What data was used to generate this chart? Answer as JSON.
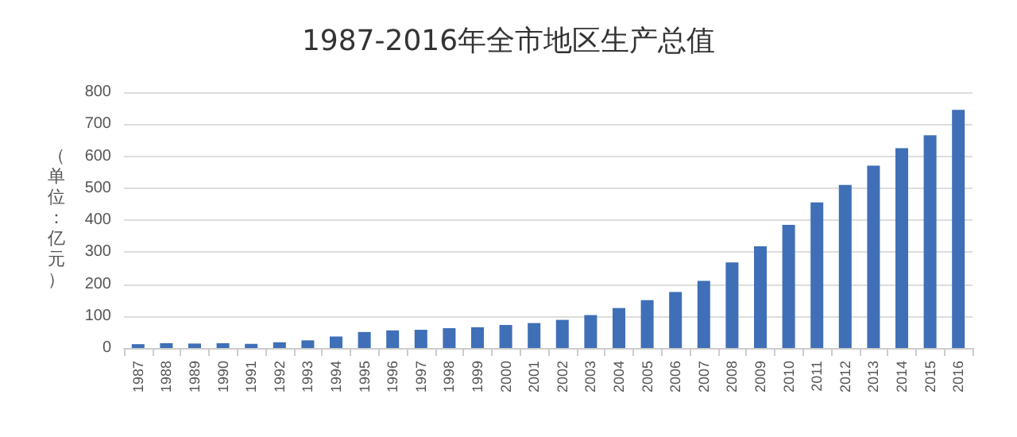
{
  "chart_data": {
    "type": "bar",
    "title": "1987-2016年全市地区生产总值",
    "ylabel": "（单位：亿元）",
    "categories": [
      "1987",
      "1988",
      "1989",
      "1990",
      "1991",
      "1992",
      "1993",
      "1994",
      "1995",
      "1996",
      "1997",
      "1998",
      "1999",
      "2000",
      "2001",
      "2002",
      "2003",
      "2004",
      "2005",
      "2006",
      "2007",
      "2008",
      "2009",
      "2010",
      "2011",
      "2012",
      "2013",
      "2014",
      "2015",
      "2016"
    ],
    "values": [
      12,
      15,
      14,
      15,
      13,
      18,
      24,
      36,
      50,
      55,
      57,
      62,
      65,
      72,
      78,
      88,
      103,
      125,
      150,
      175,
      210,
      268,
      318,
      385,
      455,
      510,
      570,
      625,
      665,
      745
    ],
    "color": "#3f6fb6",
    "ylim": [
      0,
      800
    ],
    "yticks": [
      0,
      100,
      200,
      300,
      400,
      500,
      600,
      700,
      800
    ],
    "grid": "y"
  }
}
